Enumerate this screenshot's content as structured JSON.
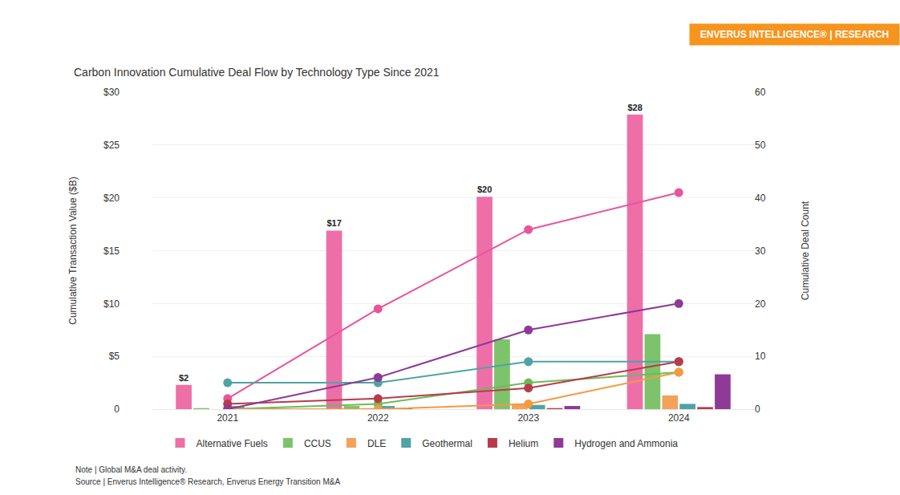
{
  "chart_data": {
    "type": "bar",
    "title": "Carbon Innovation Cumulative Deal Flow by Technology Type Since 2021",
    "y_label": "Cumulative Transaction Value ($B)",
    "y2_label": "Cumulative Deal Count",
    "annotations": [
      "ENVERUS INTELLIGENCE® | RESEARCH",
      "Note | Global M&A deal activity.",
      "Source | Enverus Intelligence® Research, Enverus Energy Transition M&A"
    ],
    "categories": [
      "2021",
      "2022",
      "2023",
      "2024"
    ],
    "ylim": [
      0,
      30
    ],
    "yticks": [
      0,
      {
        "value": 5,
        "label": "$5"
      },
      {
        "value": 10,
        "label": "$10"
      },
      {
        "value": 15,
        "label": "$15"
      },
      {
        "value": 20,
        "label": "$20"
      },
      {
        "value": 25,
        "label": "$25"
      },
      {
        "value": 30,
        "label": "$30"
      }
    ],
    "y2lim": [
      0,
      60
    ],
    "y2ticks": [
      0,
      10,
      20,
      30,
      40,
      50,
      60
    ],
    "grid": true,
    "legend": "bottom",
    "series": [
      {
        "name": "Alternative Fuels",
        "type": "bar",
        "color": "#ee6fa8",
        "values": [
          2.3,
          16.9,
          20.1,
          27.9
        ],
        "data_labels": true,
        "value_labels": [
          "$2",
          "$17",
          "$20",
          "$28"
        ]
      },
      {
        "name": "CCUS",
        "type": "bar",
        "color": "#7dc36b",
        "values": [
          0.1,
          0.3,
          6.6,
          7.1
        ]
      },
      {
        "name": "DLE",
        "type": "bar",
        "color": "#f4a259",
        "values": [
          0,
          0.1,
          0.5,
          1.3
        ]
      },
      {
        "name": "Geothermal",
        "type": "bar",
        "color": "#4fa3a5",
        "values": [
          0.3,
          0.3,
          0.4,
          0.5
        ]
      },
      {
        "name": "Helium",
        "type": "bar",
        "color": "#b83b4b",
        "values": [
          0,
          0.1,
          0.1,
          0.2
        ]
      },
      {
        "name": "Hydrogen and Ammonia",
        "type": "bar",
        "color": "#8e3a96",
        "values": [
          0,
          0,
          0.3,
          3.3
        ]
      },
      {
        "name": "Alternative Fuels",
        "type": "line",
        "axis": "y2",
        "marker": "circle",
        "color": "#e8559a",
        "values": [
          2,
          19,
          34,
          41
        ]
      },
      {
        "name": "CCUS",
        "type": "line",
        "axis": "y2",
        "marker": "circle",
        "color": "#6dbb58",
        "values": [
          0,
          1,
          5,
          7
        ]
      },
      {
        "name": "DLE",
        "type": "line",
        "axis": "y2",
        "marker": "circle",
        "color": "#f39a3f",
        "values": [
          0,
          0,
          1,
          7
        ]
      },
      {
        "name": "Geothermal",
        "type": "line",
        "axis": "y2",
        "marker": "circle",
        "color": "#4fa3a5",
        "values": [
          5,
          5,
          9,
          9
        ]
      },
      {
        "name": "Helium",
        "type": "line",
        "axis": "y2",
        "marker": "circle",
        "color": "#b83b4b",
        "values": [
          1,
          2,
          4,
          9
        ]
      },
      {
        "name": "Hydrogen and Ammonia",
        "type": "line",
        "axis": "y2",
        "marker": "circle",
        "color": "#8e3a96",
        "values": [
          0,
          6,
          15,
          20
        ]
      }
    ]
  }
}
